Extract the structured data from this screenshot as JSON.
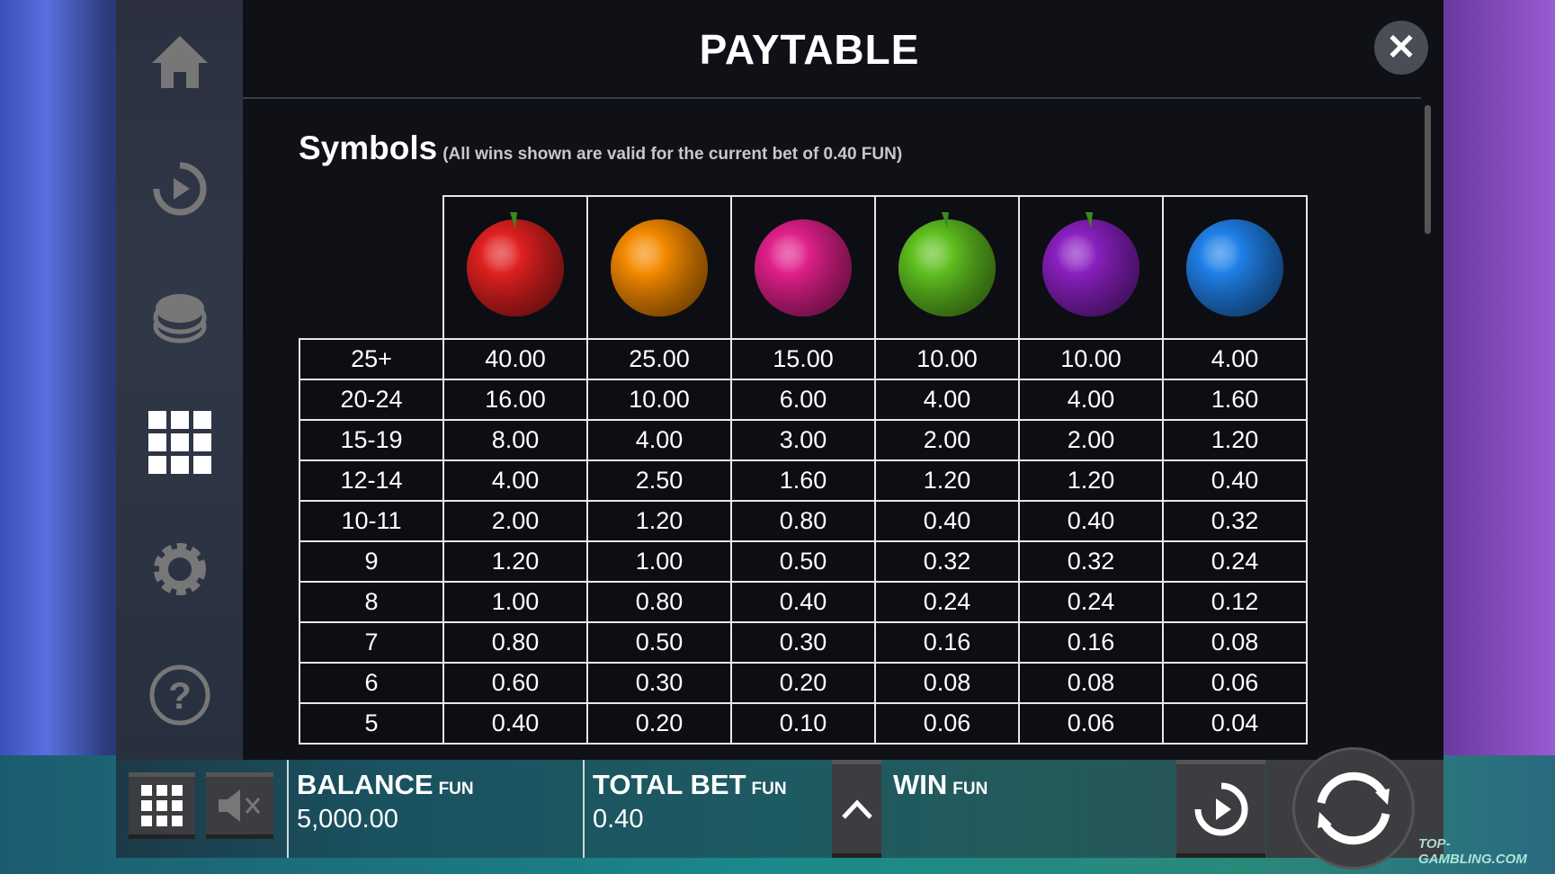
{
  "title": "PAYTABLE",
  "section": {
    "heading": "Symbols",
    "note": "(All wins shown are valid for the current bet of 0.40 FUN)"
  },
  "sidebar": [
    "home-icon",
    "autoplay-icon",
    "coins-icon",
    "paytable-grid-icon",
    "settings-gear-icon",
    "help-icon"
  ],
  "symbols": [
    {
      "name": "strawberry",
      "color": "#e02020"
    },
    {
      "name": "orange",
      "color": "#f58a00"
    },
    {
      "name": "raspberry",
      "color": "#e0208a"
    },
    {
      "name": "apple",
      "color": "#60c020"
    },
    {
      "name": "plum",
      "color": "#8a20c0"
    },
    {
      "name": "blueberry",
      "color": "#2080e8"
    }
  ],
  "rows": [
    {
      "count": "25+",
      "pays": [
        "40.00",
        "25.00",
        "15.00",
        "10.00",
        "10.00",
        "4.00"
      ]
    },
    {
      "count": "20-24",
      "pays": [
        "16.00",
        "10.00",
        "6.00",
        "4.00",
        "4.00",
        "1.60"
      ]
    },
    {
      "count": "15-19",
      "pays": [
        "8.00",
        "4.00",
        "3.00",
        "2.00",
        "2.00",
        "1.20"
      ]
    },
    {
      "count": "12-14",
      "pays": [
        "4.00",
        "2.50",
        "1.60",
        "1.20",
        "1.20",
        "0.40"
      ]
    },
    {
      "count": "10-11",
      "pays": [
        "2.00",
        "1.20",
        "0.80",
        "0.40",
        "0.40",
        "0.32"
      ]
    },
    {
      "count": "9",
      "pays": [
        "1.20",
        "1.00",
        "0.50",
        "0.32",
        "0.32",
        "0.24"
      ]
    },
    {
      "count": "8",
      "pays": [
        "1.00",
        "0.80",
        "0.40",
        "0.24",
        "0.24",
        "0.12"
      ]
    },
    {
      "count": "7",
      "pays": [
        "0.80",
        "0.50",
        "0.30",
        "0.16",
        "0.16",
        "0.08"
      ]
    },
    {
      "count": "6",
      "pays": [
        "0.60",
        "0.30",
        "0.20",
        "0.08",
        "0.08",
        "0.06"
      ]
    },
    {
      "count": "5",
      "pays": [
        "0.40",
        "0.20",
        "0.10",
        "0.06",
        "0.06",
        "0.04"
      ]
    }
  ],
  "bar": {
    "balance": {
      "label": "BALANCE",
      "currency": "FUN",
      "value": "5,000.00"
    },
    "total_bet": {
      "label": "TOTAL BET",
      "currency": "FUN",
      "value": "0.40"
    },
    "win": {
      "label": "WIN",
      "currency": "FUN"
    }
  },
  "watermark": "TOP-GAMBLING.COM"
}
